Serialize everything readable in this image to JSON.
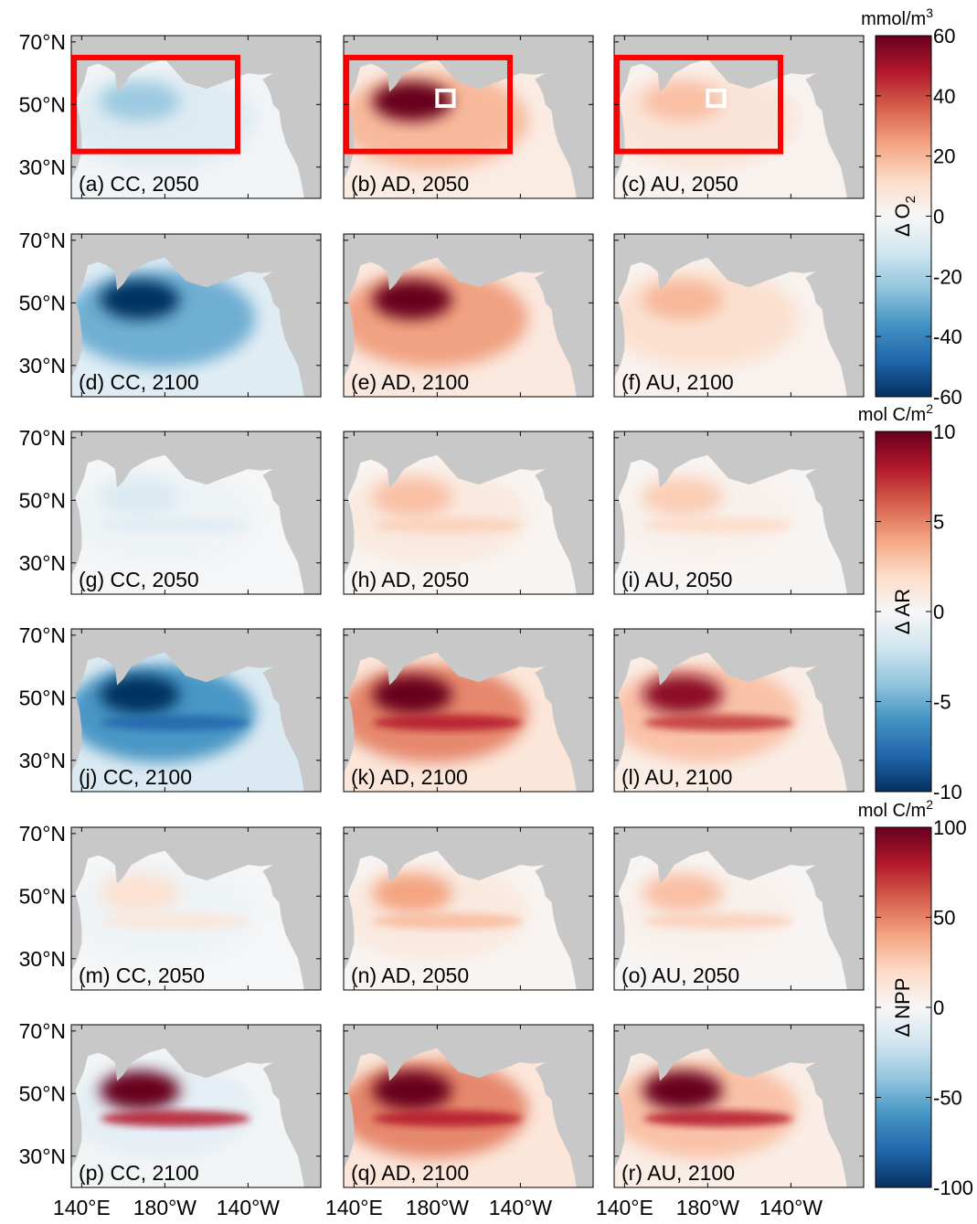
{
  "chart_data": {
    "type": "heatmap",
    "description_x": "Longitude",
    "description_y": "Latitude",
    "lat_ticks": [
      "70°N",
      "50°N",
      "30°N"
    ],
    "lat_values": [
      70,
      50,
      30
    ],
    "lat_range": [
      20,
      72
    ],
    "lon_ticks_full": [
      "140°E",
      "180°W",
      "140°W"
    ],
    "lon_ticks_last": [
      "140°E",
      "180°W",
      "140°W"
    ],
    "lon_values": [
      140,
      180,
      220
    ],
    "lon_range": [
      135,
      255
    ],
    "panels": [
      {
        "label": "(a) CC, 2050",
        "variable": "O2",
        "scenario": "CC",
        "year": 2050,
        "mean_change": -8,
        "hotspot_change": -22
      },
      {
        "label": "(b) AD, 2050",
        "variable": "O2",
        "scenario": "AD",
        "year": 2050,
        "mean_change": 20,
        "hotspot_change": 60
      },
      {
        "label": "(c) AU, 2050",
        "variable": "O2",
        "scenario": "AU",
        "year": 2050,
        "mean_change": 8,
        "hotspot_change": 18
      },
      {
        "label": "(d) CC, 2100",
        "variable": "O2",
        "scenario": "CC",
        "year": 2100,
        "mean_change": -30,
        "hotspot_change": -60
      },
      {
        "label": "(e) AD, 2100",
        "variable": "O2",
        "scenario": "AD",
        "year": 2100,
        "mean_change": 25,
        "hotspot_change": 60
      },
      {
        "label": "(f) AU, 2100",
        "variable": "O2",
        "scenario": "AU",
        "year": 2100,
        "mean_change": 10,
        "hotspot_change": 20
      },
      {
        "label": "(g) CC, 2050",
        "variable": "AR",
        "scenario": "CC",
        "year": 2050,
        "mean_change": -0.5,
        "hotspot_change": -1.5
      },
      {
        "label": "(h) AD, 2050",
        "variable": "AR",
        "scenario": "AD",
        "year": 2050,
        "mean_change": 1,
        "hotspot_change": 3
      },
      {
        "label": "(i) AU, 2050",
        "variable": "AR",
        "scenario": "AU",
        "year": 2050,
        "mean_change": 0.5,
        "hotspot_change": 2.5
      },
      {
        "label": "(j) CC, 2100",
        "variable": "AR",
        "scenario": "CC",
        "year": 2100,
        "mean_change": -6,
        "hotspot_change": -10
      },
      {
        "label": "(k) AD, 2100",
        "variable": "AR",
        "scenario": "AD",
        "year": 2100,
        "mean_change": 5,
        "hotspot_change": 10
      },
      {
        "label": "(l) AU, 2100",
        "variable": "AR",
        "scenario": "AU",
        "year": 2100,
        "mean_change": 3,
        "hotspot_change": 9
      },
      {
        "label": "(m) CC, 2050",
        "variable": "NPP",
        "scenario": "CC",
        "year": 2050,
        "mean_change": -5,
        "hotspot_change": 15
      },
      {
        "label": "(n) AD, 2050",
        "variable": "NPP",
        "scenario": "AD",
        "year": 2050,
        "mean_change": 10,
        "hotspot_change": 40
      },
      {
        "label": "(o) AU, 2050",
        "variable": "NPP",
        "scenario": "AU",
        "year": 2050,
        "mean_change": 5,
        "hotspot_change": 30
      },
      {
        "label": "(p) CC, 2100",
        "variable": "NPP",
        "scenario": "CC",
        "year": 2100,
        "mean_change": -10,
        "hotspot_change": 100
      },
      {
        "label": "(q) AD, 2100",
        "variable": "NPP",
        "scenario": "AD",
        "year": 2100,
        "mean_change": 50,
        "hotspot_change": 100
      },
      {
        "label": "(r) AU, 2100",
        "variable": "NPP",
        "scenario": "AU",
        "year": 2100,
        "mean_change": 30,
        "hotspot_change": 100
      }
    ],
    "colorbars": [
      {
        "unit": "mmol/m",
        "unit_sup": "3",
        "label": "Δ O",
        "label_sub": "2",
        "ticks": [
          "60",
          "40",
          "20",
          "0",
          "-20",
          "-40",
          "-60"
        ],
        "range": [
          -60,
          60
        ]
      },
      {
        "unit": "mol C/m",
        "unit_sup": "2",
        "label": "Δ AR",
        "label_sub": "",
        "ticks": [
          "10",
          "5",
          "0",
          "-5",
          "-10"
        ],
        "range": [
          -10,
          10
        ]
      },
      {
        "unit": "mol C/m",
        "unit_sup": "2",
        "label": "Δ NPP",
        "label_sub": "",
        "ticks": [
          "100",
          "50",
          "0",
          "-50",
          "-100"
        ],
        "range": [
          -100,
          100
        ]
      }
    ],
    "annotations": "Red boxes in panels (a)-(c) mark region 140°E–145°W, 35°N–65°N; white boxes in (b),(c) mark a small region near 180°W, 52°N.",
    "colors": {
      "land": "#c8c8c8",
      "ocean_neutral": "#f2f3f5",
      "positive_max": "#67001f",
      "negative_max": "#053061",
      "box_red": "#ff0000",
      "box_white": "#ffffff"
    }
  }
}
